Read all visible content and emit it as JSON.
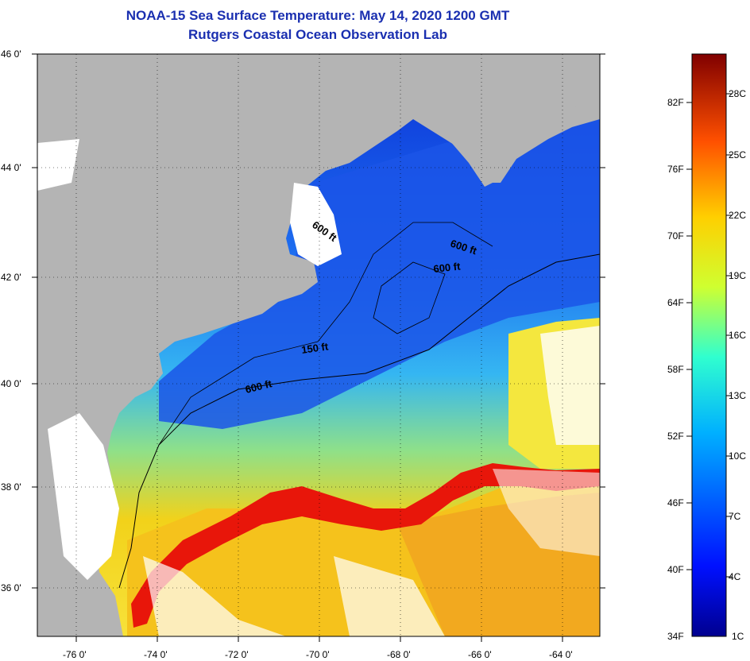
{
  "title": {
    "line1": "NOAA-15 Sea Surface Temperature:  May 14, 2020 1200 GMT",
    "line2": "Rutgers Coastal Ocean Observation Lab"
  },
  "map": {
    "lat_labels": [
      "46 0'",
      "44 0'",
      "42 0'",
      "40 0'",
      "38 0'",
      "36 0'"
    ],
    "lon_labels": [
      "-76 0'",
      "-74 0'",
      "-72 0'",
      "-70 0'",
      "-68 0'",
      "-66 0'",
      "-64 0'"
    ],
    "contour_labels": [
      "600 ft",
      "600 ft",
      "600 ft",
      "150 ft",
      "600 ft"
    ],
    "colors": {
      "land": "#b4b4b4",
      "cloud": "#ffffff",
      "gulf_stream": "#e8160a"
    }
  },
  "colorbar": {
    "fahrenheit": [
      "82F",
      "76F",
      "70F",
      "64F",
      "58F",
      "52F",
      "46F",
      "40F",
      "34F"
    ],
    "celsius": [
      "28C",
      "25C",
      "22C",
      "19C",
      "16C",
      "13C",
      "10C",
      "7C",
      "4C",
      "1C"
    ]
  }
}
